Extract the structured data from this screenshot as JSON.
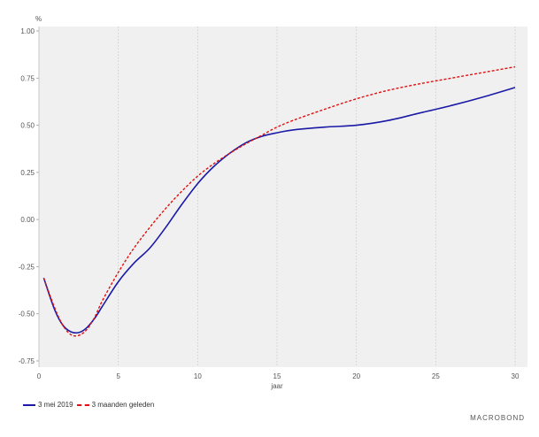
{
  "chart_data": {
    "type": "line",
    "ylabel": "%",
    "xlabel": "jaar",
    "xlim": [
      0,
      30
    ],
    "ylim": [
      -0.8,
      1.05
    ],
    "x_ticks": [
      0,
      5,
      10,
      15,
      20,
      25,
      30
    ],
    "y_ticks": [
      -0.75,
      -0.5,
      -0.25,
      0,
      0.25,
      0.5,
      0.75,
      1
    ],
    "x_tick_labels": [
      "0",
      "5",
      "10",
      "15",
      "20",
      "25",
      "30"
    ],
    "y_tick_labels": [
      "-0.75",
      "-0.50",
      "-0.25",
      "0.00",
      "0.25",
      "0.50",
      "0.75",
      "1.00"
    ],
    "grid": "vertical",
    "legend_position": "bottom-left",
    "series": [
      {
        "name": "3 mei 2019",
        "color": "#1a1aa6",
        "style": "solid",
        "points": [
          [
            0.3,
            -0.31
          ],
          [
            1,
            -0.48
          ],
          [
            1.5,
            -0.56
          ],
          [
            2,
            -0.595
          ],
          [
            2.5,
            -0.6
          ],
          [
            3,
            -0.575
          ],
          [
            3.5,
            -0.525
          ],
          [
            4,
            -0.46
          ],
          [
            5,
            -0.33
          ],
          [
            6,
            -0.23
          ],
          [
            7,
            -0.15
          ],
          [
            8,
            -0.04
          ],
          [
            9,
            0.08
          ],
          [
            10,
            0.19
          ],
          [
            11,
            0.28
          ],
          [
            12,
            0.35
          ],
          [
            13,
            0.405
          ],
          [
            14,
            0.44
          ],
          [
            15,
            0.46
          ],
          [
            16,
            0.475
          ],
          [
            18,
            0.49
          ],
          [
            20,
            0.5
          ],
          [
            22,
            0.525
          ],
          [
            24,
            0.565
          ],
          [
            26,
            0.605
          ],
          [
            28,
            0.65
          ],
          [
            30,
            0.7
          ]
        ]
      },
      {
        "name": "3 maanden geleden",
        "color": "#e01010",
        "style": "dashed",
        "points": [
          [
            0.3,
            -0.31
          ],
          [
            1,
            -0.47
          ],
          [
            1.5,
            -0.56
          ],
          [
            2,
            -0.61
          ],
          [
            2.5,
            -0.615
          ],
          [
            3,
            -0.585
          ],
          [
            3.5,
            -0.52
          ],
          [
            4,
            -0.43
          ],
          [
            5,
            -0.28
          ],
          [
            6,
            -0.15
          ],
          [
            7,
            -0.04
          ],
          [
            8,
            0.06
          ],
          [
            9,
            0.15
          ],
          [
            10,
            0.23
          ],
          [
            11,
            0.295
          ],
          [
            12,
            0.35
          ],
          [
            13,
            0.4
          ],
          [
            14,
            0.445
          ],
          [
            15,
            0.49
          ],
          [
            16,
            0.525
          ],
          [
            18,
            0.585
          ],
          [
            20,
            0.64
          ],
          [
            22,
            0.685
          ],
          [
            24,
            0.72
          ],
          [
            26,
            0.75
          ],
          [
            28,
            0.78
          ],
          [
            30,
            0.81
          ]
        ]
      }
    ]
  },
  "branding": {
    "logo_text": "MACROBOND"
  }
}
